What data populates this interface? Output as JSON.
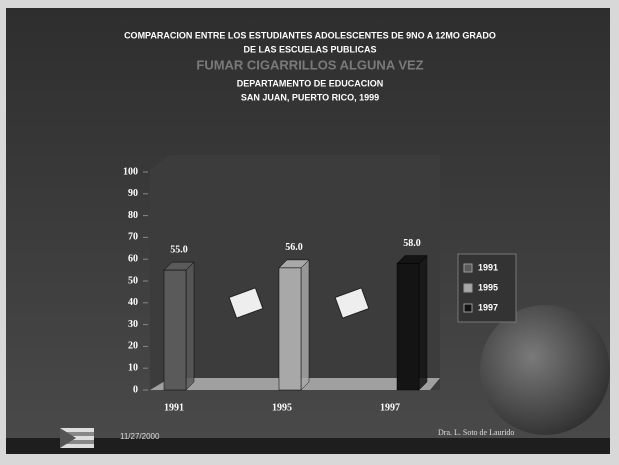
{
  "chart_data": {
    "type": "bar",
    "title_lines": [
      "COMPARACION ENTRE LOS ESTUDIANTES ADOLESCENTES DE 9NO A 12MO GRADO",
      "DE LAS ESCUELAS PUBLICAS"
    ],
    "subtitle": "FUMAR CIGARRILLOS ALGUNA VEZ",
    "source_lines": [
      "DEPARTAMENTO DE EDUCACION",
      "SAN JUAN, PUERTO RICO, 1999"
    ],
    "categories": [
      "1991",
      "1995",
      "1997"
    ],
    "series": [
      {
        "name": "1991",
        "color": "#5a5a5a",
        "values": [
          55,
          null,
          null
        ],
        "value_labels": [
          "55.0",
          null,
          null
        ]
      },
      {
        "name": "1995",
        "color": "#a8a8a8",
        "values": [
          null,
          56,
          null
        ],
        "value_labels": [
          null,
          "56.0",
          null
        ]
      },
      {
        "name": "1997",
        "color": "#141414",
        "values": [
          null,
          null,
          58
        ],
        "value_labels": [
          null,
          null,
          "58.0"
        ]
      }
    ],
    "ylim": [
      0,
      100
    ],
    "yticks": [
      0,
      10,
      20,
      30,
      40,
      50,
      60,
      70,
      80,
      90,
      100
    ],
    "legend": "right",
    "footer_date": "11/27/2000",
    "footer_author": "Dra. L. Soto de Laurido"
  }
}
